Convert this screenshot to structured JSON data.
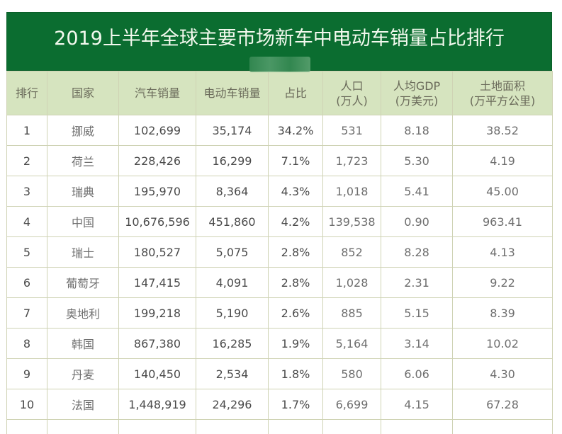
{
  "title": "2019上半年全球主要市场新车中电动车销量占比排行",
  "colors": {
    "title_bg": "#0b6d30",
    "header_bg": "#d6e4bf",
    "grid": "#cfd3b4"
  },
  "columns": [
    {
      "line1": "排行",
      "line2": ""
    },
    {
      "line1": "国家",
      "line2": ""
    },
    {
      "line1": "汽车销量",
      "line2": ""
    },
    {
      "line1": "电动车销量",
      "line2": ""
    },
    {
      "line1": "占比",
      "line2": ""
    },
    {
      "line1": "人口",
      "line2": "(万人)"
    },
    {
      "line1": "人均GDP",
      "line2": "(万美元)"
    },
    {
      "line1": "土地面积",
      "line2": "(万平方公里)"
    }
  ],
  "rows": [
    {
      "rank": "1",
      "country": "挪威",
      "car_sales": "102,699",
      "ev_sales": "35,174",
      "share": "34.2%",
      "population": "531",
      "gdp_per_capita": "8.18",
      "land_area": "38.52"
    },
    {
      "rank": "2",
      "country": "荷兰",
      "car_sales": "228,426",
      "ev_sales": "16,299",
      "share": "7.1%",
      "population": "1,723",
      "gdp_per_capita": "5.30",
      "land_area": "4.19"
    },
    {
      "rank": "3",
      "country": "瑞典",
      "car_sales": "195,970",
      "ev_sales": "8,364",
      "share": "4.3%",
      "population": "1,018",
      "gdp_per_capita": "5.41",
      "land_area": "45.00"
    },
    {
      "rank": "4",
      "country": "中国",
      "car_sales": "10,676,596",
      "ev_sales": "451,860",
      "share": "4.2%",
      "population": "139,538",
      "gdp_per_capita": "0.90",
      "land_area": "963.41"
    },
    {
      "rank": "5",
      "country": "瑞士",
      "car_sales": "180,527",
      "ev_sales": "5,075",
      "share": "2.8%",
      "population": "852",
      "gdp_per_capita": "8.28",
      "land_area": "4.13"
    },
    {
      "rank": "6",
      "country": "葡萄牙",
      "car_sales": "147,415",
      "ev_sales": "4,091",
      "share": "2.8%",
      "population": "1,028",
      "gdp_per_capita": "2.31",
      "land_area": "9.22"
    },
    {
      "rank": "7",
      "country": "奥地利",
      "car_sales": "199,218",
      "ev_sales": "5,190",
      "share": "2.6%",
      "population": "885",
      "gdp_per_capita": "5.15",
      "land_area": "8.39"
    },
    {
      "rank": "8",
      "country": "韩国",
      "car_sales": "867,380",
      "ev_sales": "16,285",
      "share": "1.9%",
      "population": "5,164",
      "gdp_per_capita": "3.14",
      "land_area": "10.02"
    },
    {
      "rank": "9",
      "country": "丹麦",
      "car_sales": "140,450",
      "ev_sales": "2,534",
      "share": "1.8%",
      "population": "580",
      "gdp_per_capita": "6.06",
      "land_area": "4.30"
    },
    {
      "rank": "10",
      "country": "法国",
      "car_sales": "1,448,919",
      "ev_sales": "24,296",
      "share": "1.7%",
      "population": "6,699",
      "gdp_per_capita": "4.15",
      "land_area": "67.28"
    }
  ]
}
